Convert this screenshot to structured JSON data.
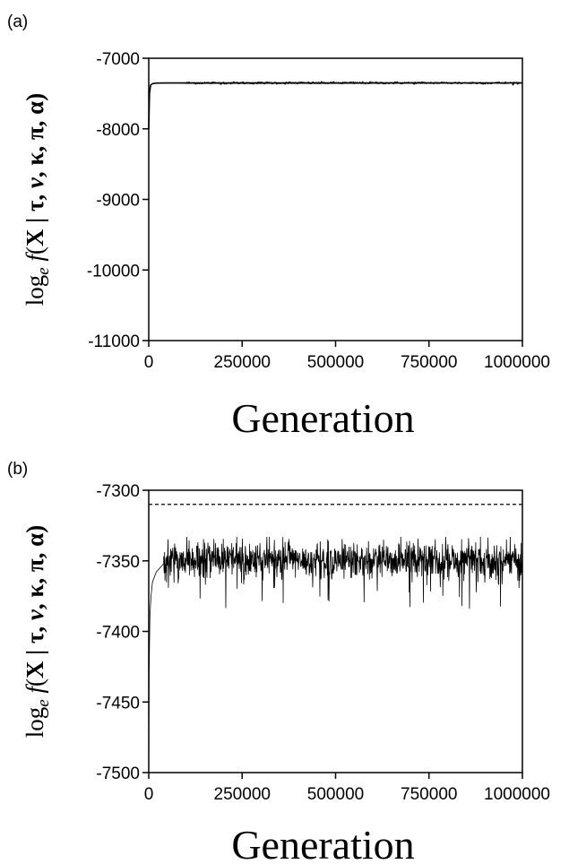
{
  "chart_data": [
    {
      "type": "line",
      "panel_label": "(a)",
      "xlabel": "Generation",
      "ylabel": {
        "prefix": "log",
        "subscript": "e",
        "func": "f",
        "open": "(",
        "var": "X",
        "rest": " | τ, ",
        "nu": "ν",
        "rest2": ", κ, π, α)"
      },
      "xlim": [
        0,
        1000000
      ],
      "ylim": [
        -11000,
        -7000
      ],
      "xticks": [
        0,
        250000,
        500000,
        750000,
        1000000
      ],
      "xtick_labels": [
        "0",
        "250000",
        "500000",
        "750000",
        "1000000"
      ],
      "yticks": [
        -7000,
        -8000,
        -9000,
        -10000,
        -11000
      ],
      "ytick_labels": [
        "-7000",
        "-8000",
        "-9000",
        "-10000",
        "-11000"
      ],
      "series": [
        {
          "style": "trace",
          "x": [
            0,
            2000,
            5000,
            10000,
            20000,
            50000,
            100000,
            200000,
            400000,
            600000,
            800000,
            1000000
          ],
          "y": [
            -8000,
            -7500,
            -7380,
            -7360,
            -7352,
            -7350,
            -7350,
            -7350,
            -7350,
            -7350,
            -7350,
            -7350
          ]
        }
      ]
    },
    {
      "type": "line",
      "panel_label": "(b)",
      "xlabel": "Generation",
      "ylabel": {
        "prefix": "log",
        "subscript": "e",
        "func": "f",
        "open": "(",
        "var": "X",
        "rest": " | τ, ",
        "nu": "ν",
        "rest2": ", κ, π, α)"
      },
      "xlim": [
        0,
        1000000
      ],
      "ylim": [
        -7500,
        -7300
      ],
      "xticks": [
        0,
        250000,
        500000,
        750000,
        1000000
      ],
      "xtick_labels": [
        "0",
        "250000",
        "500000",
        "750000",
        "1000000"
      ],
      "yticks": [
        -7300,
        -7350,
        -7400,
        -7450,
        -7500
      ],
      "ytick_labels": [
        "-7300",
        "-7350",
        "-7400",
        "-7450",
        "-7500"
      ],
      "reference_line": {
        "y": -7310,
        "style": "dashed"
      },
      "series": [
        {
          "style": "noisy-trace",
          "burn_in": {
            "x": [
              0,
              1000,
              3000,
              6000,
              10000,
              20000,
              40000
            ],
            "y": [
              -7500,
              -7430,
              -7390,
              -7375,
              -7365,
              -7358,
              -7352
            ]
          },
          "mean": -7350,
          "spread": 12,
          "min": -7385,
          "max": -7333
        }
      ]
    }
  ]
}
